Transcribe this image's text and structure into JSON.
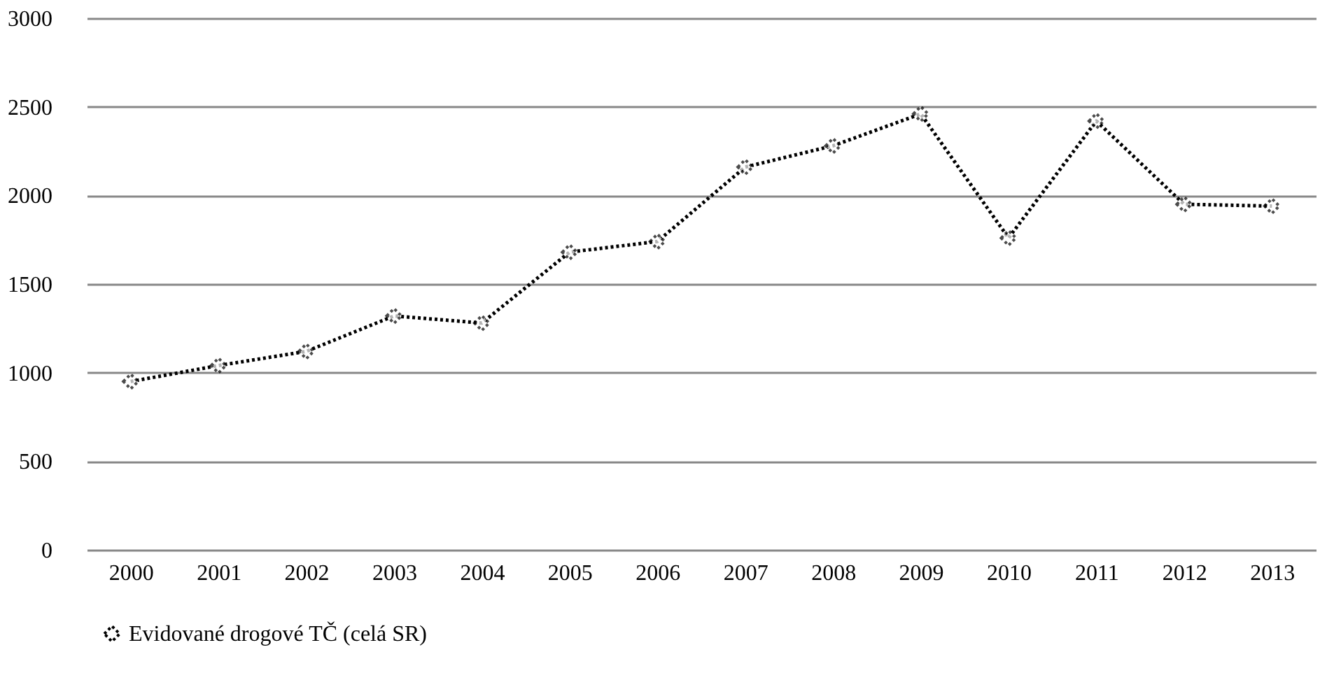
{
  "chart_data": {
    "type": "line",
    "categories": [
      "2000",
      "2001",
      "2002",
      "2003",
      "2004",
      "2005",
      "2006",
      "2007",
      "2008",
      "2009",
      "2010",
      "2011",
      "2012",
      "2013"
    ],
    "series": [
      {
        "name": "Evidované  drogové TČ (celá SR)",
        "color": "#000000",
        "values": [
          950,
          1040,
          1120,
          1320,
          1280,
          1680,
          1740,
          2160,
          2280,
          2460,
          1760,
          2420,
          1950,
          1940
        ]
      }
    ],
    "ylim": [
      0,
      3000
    ],
    "yticks": [
      0,
      500,
      1000,
      1500,
      2000,
      2500,
      3000
    ],
    "grid": "y",
    "legend": "bottom",
    "marker": "diamond",
    "line_style": "dotted"
  }
}
